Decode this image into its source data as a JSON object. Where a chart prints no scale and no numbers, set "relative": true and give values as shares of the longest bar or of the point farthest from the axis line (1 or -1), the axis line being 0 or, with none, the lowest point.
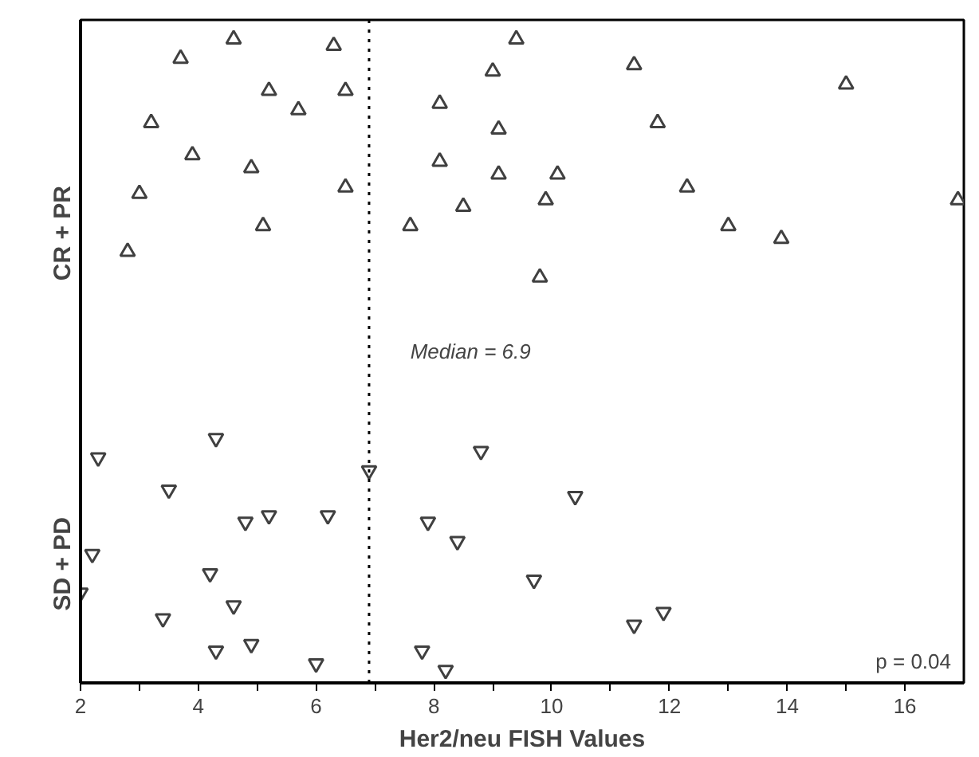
{
  "chart_data": {
    "type": "scatter",
    "relative": true,
    "xlabel": "Her2/neu FISH Values",
    "series": [
      {
        "marker": "triangle",
        "color": "#404040",
        "x": [
          2.8,
          3.0,
          3.2,
          3.7,
          3.9,
          4.6,
          4.9,
          5.1,
          5.2,
          5.7,
          6.3,
          6.5,
          6.5,
          7.6,
          8.1,
          8.1,
          8.5,
          9.0,
          9.1,
          9.1,
          9.4,
          9.8,
          9.9,
          10.1,
          11.4,
          11.8,
          12.3,
          13.0,
          13.9,
          15.0,
          16.9
        ],
        "values": [
          0.67,
          0.76,
          0.87,
          0.97,
          0.82,
          1.0,
          0.8,
          0.71,
          0.92,
          0.89,
          0.99,
          0.77,
          0.92,
          0.71,
          0.81,
          0.9,
          0.74,
          0.95,
          0.86,
          0.79,
          1.0,
          0.63,
          0.75,
          0.79,
          0.96,
          0.87,
          0.77,
          0.71,
          0.69,
          0.93,
          0.75
        ]
      },
      {
        "color": "#404040",
        "x": [
          2.3,
          4.3,
          6.9,
          3.5,
          4.8,
          5.2,
          6.2,
          7.9,
          8.8,
          2.2,
          4.2,
          8.4,
          2.0,
          4.6,
          3.4,
          4.3,
          4.9,
          6.0,
          7.8,
          8.2,
          10.4,
          9.7,
          11.4,
          11.9
        ],
        "values": [
          0.35,
          0.38,
          0.33,
          0.3,
          0.25,
          0.26,
          0.26,
          0.25,
          0.36,
          0.2,
          0.17,
          0.22,
          0.14,
          0.12,
          0.1,
          0.05,
          0.06,
          0.03,
          0.05,
          0.02,
          0.29,
          0.16,
          0.09,
          0.11
        ]
      }
    ],
    "xlim": [
      2,
      17
    ],
    "xticks": [
      2,
      {
        "value": 3,
        "label": null
      },
      4,
      {
        "value": 5,
        "label": null
      },
      6,
      {
        "value": 7,
        "label": null
      },
      8,
      {
        "value": 9,
        "label": null
      },
      10,
      {
        "value": 11,
        "label": null
      },
      12,
      {
        "value": 13,
        "label": null
      },
      14,
      {
        "value": 15,
        "label": null
      },
      16
    ],
    "ref_lines": [
      {
        "axis": "x",
        "value": 6.9,
        "label": "Median = 6.9",
        "line_style": "dotted",
        "color": "#000000"
      }
    ],
    "annotations": [
      "CR + PR",
      "SD + PD",
      "p = 0.04"
    ],
    "grid": false
  }
}
